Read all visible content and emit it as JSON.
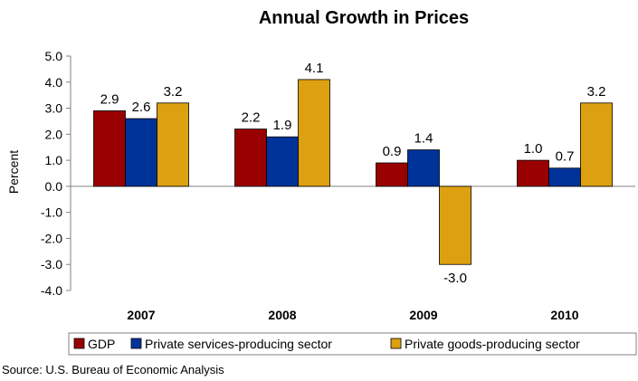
{
  "chart_data": {
    "type": "bar",
    "title": "Annual Growth in Prices",
    "ylabel": "Percent",
    "xlabel": "",
    "categories": [
      "2007",
      "2008",
      "2009",
      "2010"
    ],
    "series": [
      {
        "name": "GDP",
        "color": "#990000",
        "values": [
          2.9,
          2.2,
          0.9,
          1.0
        ],
        "labels": [
          "2.9",
          "2.2",
          "0.9",
          "1.0"
        ]
      },
      {
        "name": "Private services-producing sector",
        "color": "#003399",
        "values": [
          2.6,
          1.9,
          1.4,
          0.7
        ],
        "labels": [
          "2.6",
          "1.9",
          "1.4",
          "0.7"
        ]
      },
      {
        "name": "Private goods-producing sector",
        "color": "#DDA010",
        "values": [
          3.2,
          4.1,
          -3.0,
          3.2
        ],
        "labels": [
          "3.2",
          "4.1",
          "-3.0",
          "3.2"
        ]
      }
    ],
    "ylim": [
      -4.0,
      5.0
    ],
    "yticks": [
      "5.0",
      "4.0",
      "3.0",
      "2.0",
      "1.0",
      "0.0",
      "-1.0",
      "-2.0",
      "-3.0",
      "-4.0"
    ],
    "grid": false,
    "legend": "bottom",
    "source": "Source: U.S. Bureau of Economic Analysis"
  }
}
